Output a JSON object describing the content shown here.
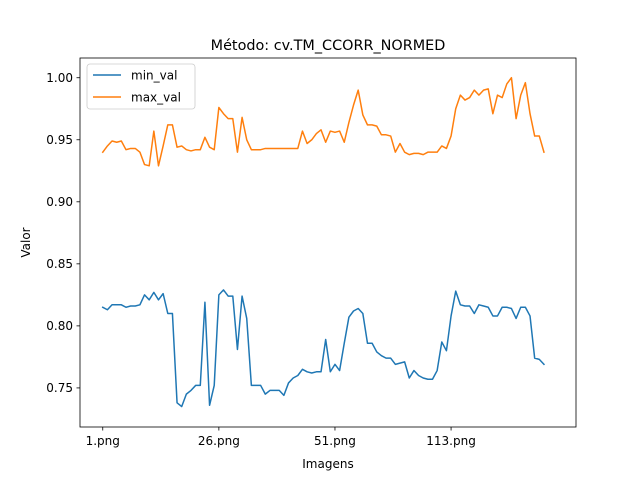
{
  "chart_data": {
    "type": "line",
    "title": "Método: cv.TM_CCORR_NORMED",
    "xlabel": "Imagens",
    "ylabel": "Valor",
    "ylim": [
      0.7185,
      1.0159
    ],
    "yticks": [
      0.75,
      0.8,
      0.85,
      0.9,
      0.95,
      1.0
    ],
    "ytick_labels": [
      "0.75",
      "0.80",
      "0.85",
      "0.90",
      "0.95",
      "1.00"
    ],
    "xlim": [
      -4.9,
      101.9
    ],
    "xticks": [
      {
        "pos": 0,
        "label": "1.png"
      },
      {
        "pos": 25,
        "label": "26.png"
      },
      {
        "pos": 50,
        "label": "51.png"
      },
      {
        "pos": 75,
        "label": "113.png"
      }
    ],
    "legend": {
      "position": "top-left"
    },
    "grid": false,
    "series": [
      {
        "name": "min_val",
        "color": "#1f77b4",
        "values": [
          0.815,
          0.813,
          0.817,
          0.817,
          0.817,
          0.815,
          0.816,
          0.816,
          0.817,
          0.825,
          0.821,
          0.827,
          0.821,
          0.826,
          0.81,
          0.81,
          0.738,
          0.735,
          0.745,
          0.748,
          0.752,
          0.752,
          0.819,
          0.736,
          0.752,
          0.825,
          0.829,
          0.824,
          0.824,
          0.781,
          0.824,
          0.806,
          0.752,
          0.752,
          0.752,
          0.745,
          0.748,
          0.748,
          0.748,
          0.744,
          0.754,
          0.758,
          0.76,
          0.765,
          0.763,
          0.762,
          0.763,
          0.763,
          0.789,
          0.763,
          0.769,
          0.764,
          0.786,
          0.807,
          0.812,
          0.814,
          0.81,
          0.786,
          0.786,
          0.779,
          0.776,
          0.774,
          0.774,
          0.769,
          0.77,
          0.771,
          0.758,
          0.764,
          0.76,
          0.758,
          0.757,
          0.757,
          0.764,
          0.787,
          0.78,
          0.808,
          0.828,
          0.817,
          0.816,
          0.816,
          0.81,
          0.817,
          0.816,
          0.815,
          0.808,
          0.808,
          0.815,
          0.815,
          0.814,
          0.806,
          0.815,
          0.815,
          0.808,
          0.774,
          0.773,
          0.769
        ]
      },
      {
        "name": "max_val",
        "color": "#ff7f0e",
        "values": [
          0.94,
          0.945,
          0.949,
          0.948,
          0.949,
          0.942,
          0.943,
          0.943,
          0.94,
          0.93,
          0.929,
          0.957,
          0.929,
          0.945,
          0.962,
          0.962,
          0.944,
          0.945,
          0.942,
          0.941,
          0.942,
          0.942,
          0.952,
          0.944,
          0.942,
          0.976,
          0.971,
          0.967,
          0.967,
          0.94,
          0.968,
          0.95,
          0.942,
          0.942,
          0.942,
          0.943,
          0.943,
          0.943,
          0.943,
          0.943,
          0.943,
          0.943,
          0.943,
          0.957,
          0.947,
          0.95,
          0.955,
          0.958,
          0.948,
          0.957,
          0.956,
          0.957,
          0.948,
          0.964,
          0.978,
          0.99,
          0.97,
          0.962,
          0.962,
          0.961,
          0.954,
          0.954,
          0.953,
          0.94,
          0.947,
          0.94,
          0.938,
          0.939,
          0.939,
          0.938,
          0.94,
          0.94,
          0.94,
          0.945,
          0.943,
          0.953,
          0.975,
          0.986,
          0.982,
          0.984,
          0.99,
          0.986,
          0.99,
          0.991,
          0.971,
          0.986,
          0.984,
          0.995,
          1.0,
          0.967,
          0.986,
          0.996,
          0.971,
          0.953,
          0.953,
          0.94
        ]
      }
    ]
  }
}
